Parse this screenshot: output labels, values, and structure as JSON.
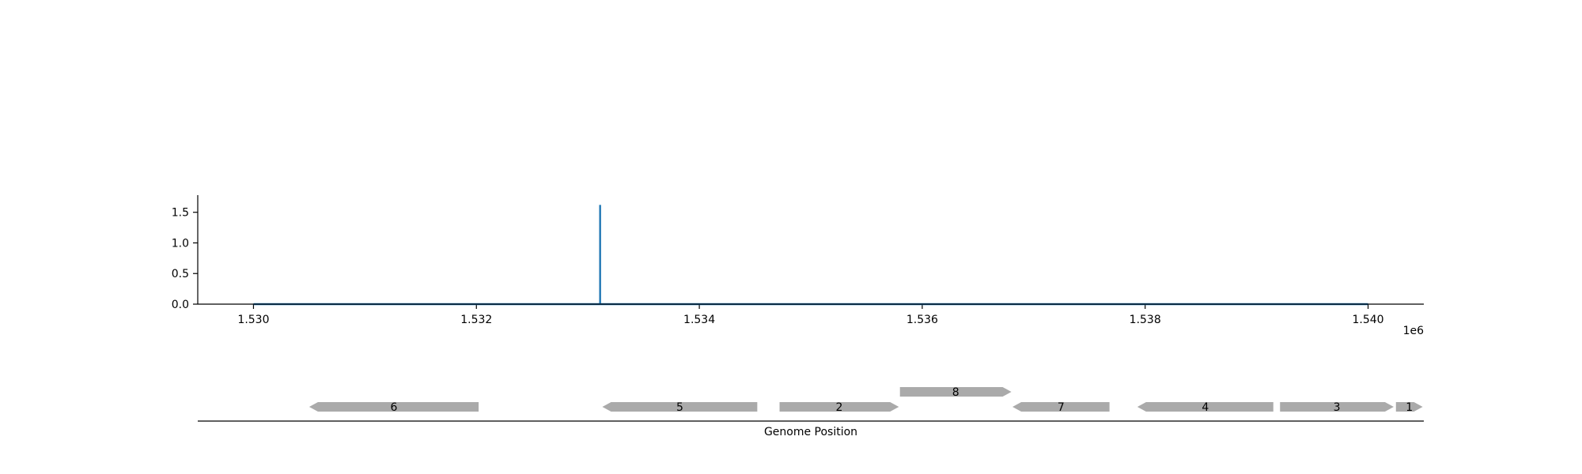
{
  "chart_data": [
    {
      "type": "line",
      "title": "",
      "xlabel": "",
      "ylabel": "",
      "x_offset_label": "1e6",
      "xlim": [
        1529500,
        1540500
      ],
      "ylim": [
        0,
        1.78
      ],
      "x_ticks": [
        1530000,
        1532000,
        1534000,
        1536000,
        1538000,
        1540000
      ],
      "x_tick_labels": [
        "1.530",
        "1.532",
        "1.534",
        "1.536",
        "1.538",
        "1.540"
      ],
      "y_ticks": [
        0.0,
        0.5,
        1.0,
        1.5
      ],
      "y_tick_labels": [
        "0.0",
        "0.5",
        "1.0",
        "1.5"
      ],
      "series": [
        {
          "color": "#1f77b4",
          "x": [
            1530000,
            1533110,
            1533110,
            1533110,
            1540000
          ],
          "y": [
            0,
            0,
            1.62,
            0,
            0
          ]
        }
      ],
      "grid": false
    },
    {
      "type": "gene_track",
      "xlabel": "Genome Position",
      "xlim": [
        1529500,
        1540500
      ],
      "feature_color": "#aaaaaa",
      "features": [
        {
          "label": "6",
          "start": 1530500,
          "end": 1532020,
          "strand": "-",
          "row": 0
        },
        {
          "label": "5",
          "start": 1533130,
          "end": 1534520,
          "strand": "-",
          "row": 0
        },
        {
          "label": "2",
          "start": 1534720,
          "end": 1535790,
          "strand": "+",
          "row": 0
        },
        {
          "label": "8",
          "start": 1535800,
          "end": 1536800,
          "strand": "+",
          "row": 1
        },
        {
          "label": "7",
          "start": 1536810,
          "end": 1537680,
          "strand": "-",
          "row": 0
        },
        {
          "label": "4",
          "start": 1537930,
          "end": 1539150,
          "strand": "-",
          "row": 0
        },
        {
          "label": "3",
          "start": 1539210,
          "end": 1540230,
          "strand": "+",
          "row": 0
        },
        {
          "label": "1",
          "start": 1540250,
          "end": 1540490,
          "strand": "+",
          "row": 0
        }
      ]
    }
  ]
}
